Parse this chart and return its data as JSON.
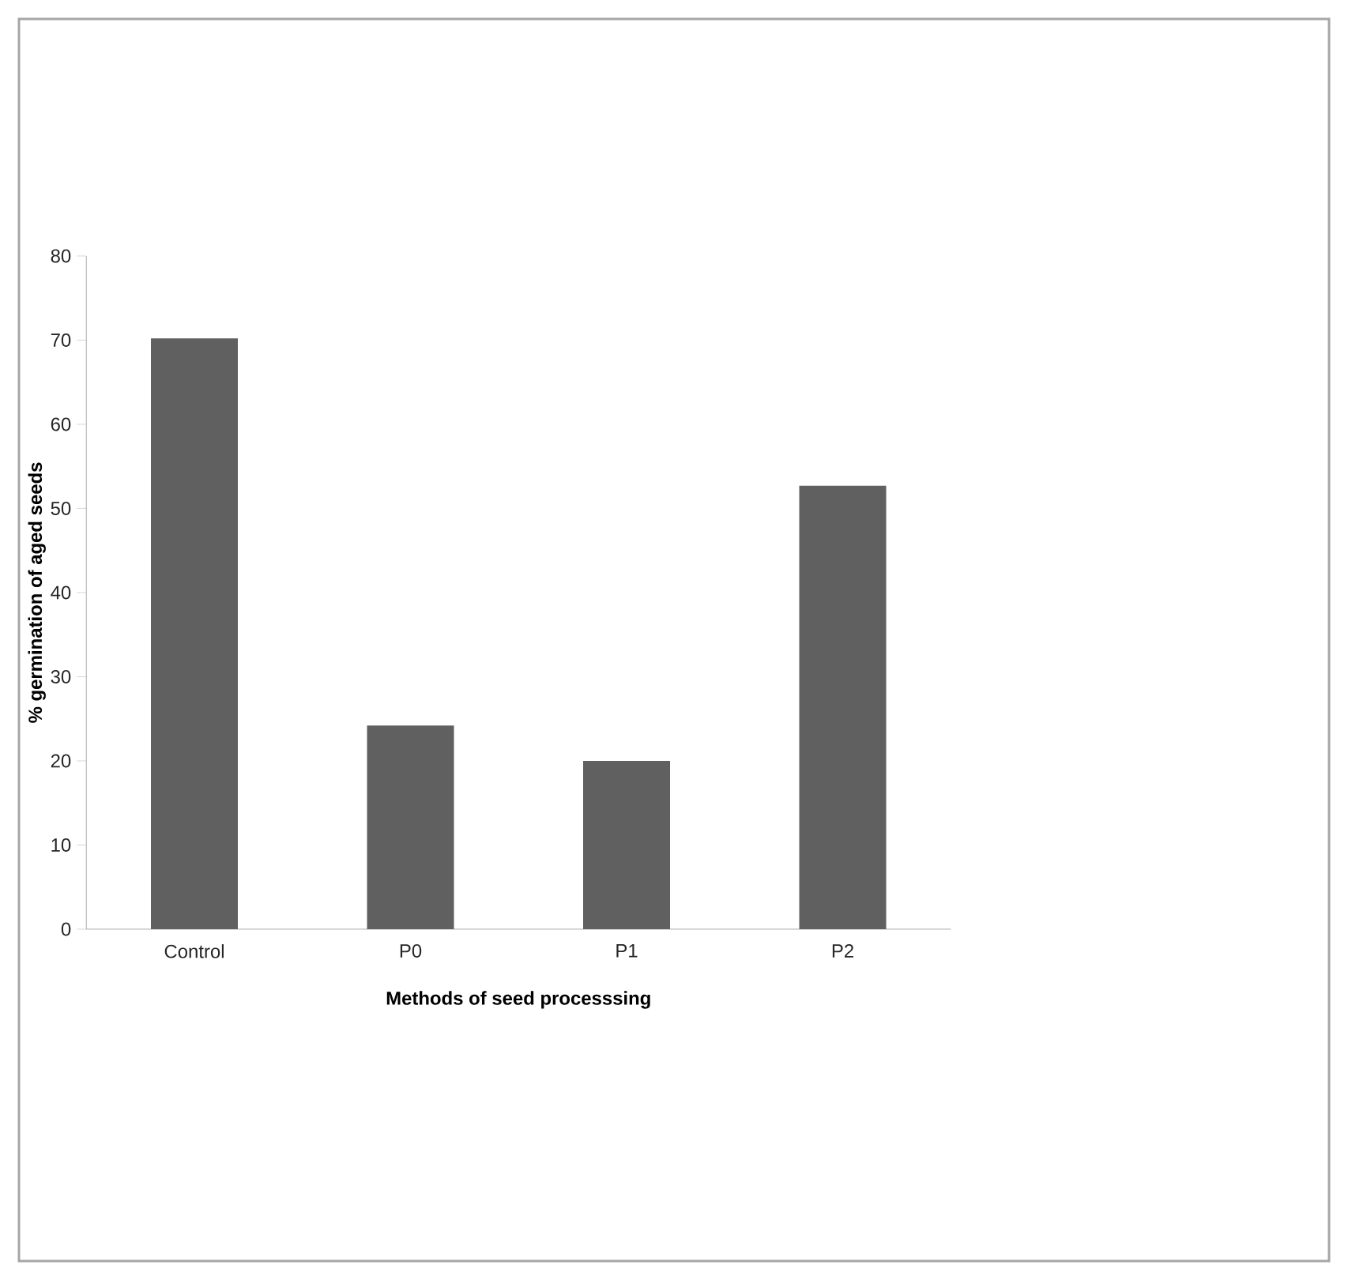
{
  "chart_data": {
    "type": "bar",
    "xlabel": "Methods of seed processsing",
    "ylabel": "% germination of aged seeds",
    "categories": [
      "Control",
      "P0",
      "P1",
      "P2"
    ],
    "values": [
      70.2,
      24.2,
      20.0,
      52.7
    ],
    "color": "#606060",
    "ylim": [
      0,
      80
    ],
    "yticks": [
      0,
      10,
      20,
      30,
      40,
      50,
      60,
      70,
      80
    ],
    "grid": false
  }
}
